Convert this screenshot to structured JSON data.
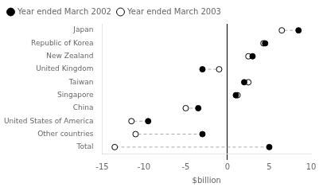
{
  "chart_data": {
    "type": "dot",
    "orientation": "horizontal",
    "categories": [
      "Japan",
      "Republic of Korea",
      "New Zealand",
      "United Kingdom",
      "Taiwan",
      "Singapore",
      "China",
      "United States of America",
      "Other countries",
      "Total"
    ],
    "series": [
      {
        "name": "Year ended March 2002",
        "color": "#000000",
        "marker": "circle",
        "values": [
          8.5,
          4.5,
          3.0,
          -3.0,
          2.0,
          1.0,
          -3.5,
          -9.5,
          -3.0,
          5.0
        ]
      },
      {
        "name": "Year ended March 2003",
        "color": "#ffffff",
        "marker": "circle",
        "values": [
          6.5,
          4.3,
          2.5,
          -1.0,
          2.5,
          1.2,
          -5.0,
          -11.5,
          -11.0,
          -13.5
        ]
      }
    ],
    "xlabel": "$billion",
    "xlim": [
      -15,
      10
    ],
    "xticks": [
      -15,
      -10,
      -5,
      0,
      5,
      10
    ],
    "grid": false,
    "legend": "upper left"
  }
}
